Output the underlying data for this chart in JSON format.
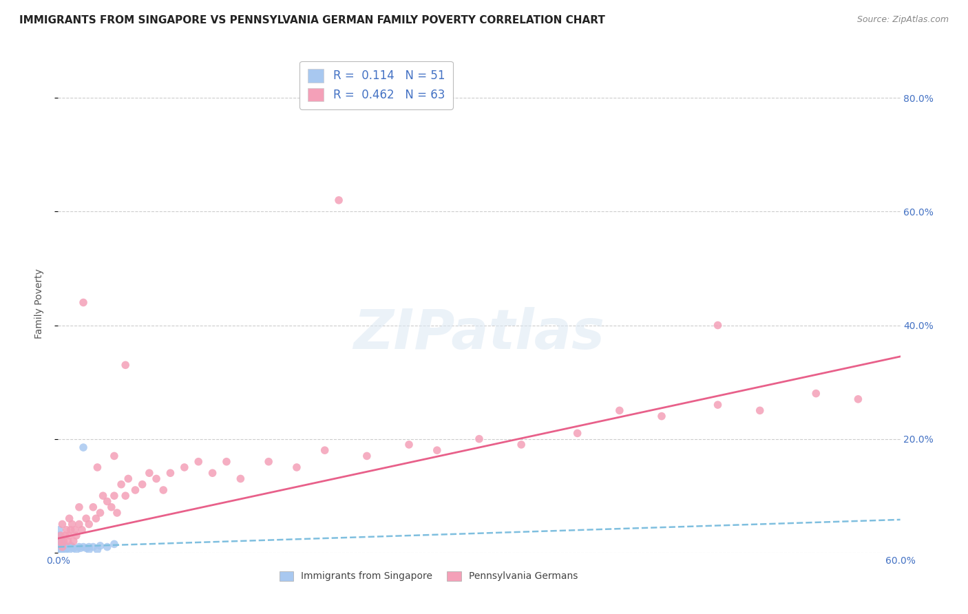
{
  "title": "IMMIGRANTS FROM SINGAPORE VS PENNSYLVANIA GERMAN FAMILY POVERTY CORRELATION CHART",
  "source": "Source: ZipAtlas.com",
  "ylabel": "Family Poverty",
  "xlim": [
    0,
    0.6
  ],
  "ylim": [
    0,
    0.875
  ],
  "xtick_positions": [
    0.0,
    0.1,
    0.2,
    0.3,
    0.4,
    0.5,
    0.6
  ],
  "xticklabels": [
    "0.0%",
    "",
    "",
    "",
    "",
    "",
    "60.0%"
  ],
  "ytick_positions": [
    0.0,
    0.2,
    0.4,
    0.6,
    0.8
  ],
  "yticklabels_right": [
    "",
    "20.0%",
    "40.0%",
    "60.0%",
    "80.0%"
  ],
  "legend1_label": "Immigrants from Singapore",
  "legend2_label": "Pennsylvania Germans",
  "R1": "0.114",
  "N1": "51",
  "R2": "0.462",
  "N2": "63",
  "color1": "#a8c8f0",
  "color2": "#f4a0b8",
  "line1_color": "#7fbfdf",
  "line2_color": "#e8608a",
  "watermark": "ZIPatlas",
  "sg_x": [
    0.0005,
    0.0005,
    0.0005,
    0.0008,
    0.0008,
    0.0008,
    0.0008,
    0.0008,
    0.001,
    0.001,
    0.001,
    0.001,
    0.001,
    0.001,
    0.0012,
    0.0012,
    0.0012,
    0.0015,
    0.0015,
    0.0015,
    0.002,
    0.002,
    0.002,
    0.002,
    0.002,
    0.003,
    0.003,
    0.003,
    0.004,
    0.004,
    0.005,
    0.005,
    0.006,
    0.007,
    0.008,
    0.009,
    0.01,
    0.011,
    0.013,
    0.015,
    0.016,
    0.018,
    0.02,
    0.022,
    0.025,
    0.028,
    0.03,
    0.035,
    0.04,
    0.018,
    0.022
  ],
  "sg_y": [
    0.0,
    0.005,
    0.01,
    0.015,
    0.02,
    0.025,
    0.03,
    0.04,
    0.0,
    0.005,
    0.01,
    0.015,
    0.02,
    0.03,
    0.005,
    0.01,
    0.02,
    0.005,
    0.01,
    0.015,
    0.005,
    0.01,
    0.015,
    0.02,
    0.025,
    0.005,
    0.01,
    0.015,
    0.008,
    0.015,
    0.005,
    0.012,
    0.01,
    0.008,
    0.005,
    0.012,
    0.01,
    0.008,
    0.005,
    0.01,
    0.008,
    0.01,
    0.008,
    0.005,
    0.01,
    0.005,
    0.012,
    0.01,
    0.015,
    0.185,
    0.01
  ],
  "pg_x": [
    0.001,
    0.002,
    0.003,
    0.003,
    0.004,
    0.005,
    0.006,
    0.007,
    0.008,
    0.008,
    0.009,
    0.01,
    0.011,
    0.012,
    0.013,
    0.015,
    0.015,
    0.017,
    0.018,
    0.02,
    0.022,
    0.025,
    0.027,
    0.028,
    0.03,
    0.032,
    0.035,
    0.038,
    0.04,
    0.04,
    0.042,
    0.045,
    0.048,
    0.05,
    0.055,
    0.06,
    0.065,
    0.07,
    0.075,
    0.08,
    0.09,
    0.1,
    0.11,
    0.12,
    0.13,
    0.15,
    0.17,
    0.19,
    0.22,
    0.25,
    0.27,
    0.3,
    0.33,
    0.37,
    0.4,
    0.43,
    0.47,
    0.5,
    0.54,
    0.57,
    0.048,
    0.2,
    0.47
  ],
  "pg_y": [
    0.02,
    0.03,
    0.01,
    0.05,
    0.02,
    0.03,
    0.04,
    0.02,
    0.03,
    0.06,
    0.04,
    0.05,
    0.02,
    0.04,
    0.03,
    0.05,
    0.08,
    0.04,
    0.44,
    0.06,
    0.05,
    0.08,
    0.06,
    0.15,
    0.07,
    0.1,
    0.09,
    0.08,
    0.1,
    0.17,
    0.07,
    0.12,
    0.1,
    0.13,
    0.11,
    0.12,
    0.14,
    0.13,
    0.11,
    0.14,
    0.15,
    0.16,
    0.14,
    0.16,
    0.13,
    0.16,
    0.15,
    0.18,
    0.17,
    0.19,
    0.18,
    0.2,
    0.19,
    0.21,
    0.25,
    0.24,
    0.26,
    0.25,
    0.28,
    0.27,
    0.33,
    0.62,
    0.4
  ],
  "sg_line_x": [
    0.0,
    0.6
  ],
  "sg_line_y": [
    0.01,
    0.058
  ],
  "pg_line_x": [
    0.0,
    0.6
  ],
  "pg_line_y": [
    0.025,
    0.345
  ]
}
